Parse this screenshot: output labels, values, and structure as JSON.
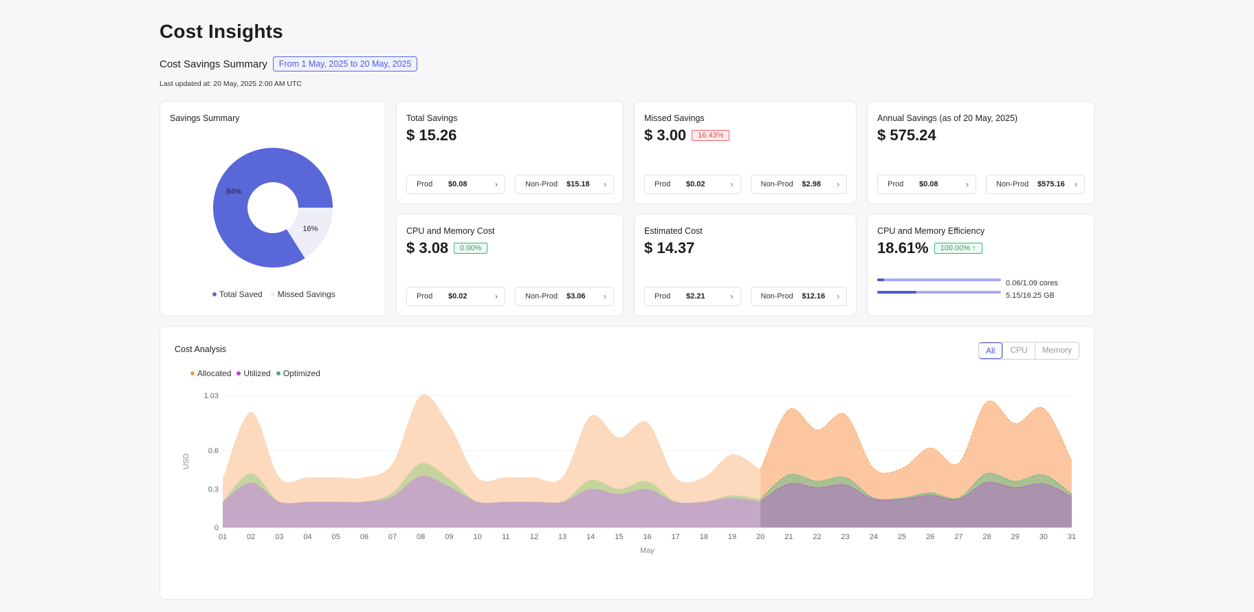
{
  "page": {
    "title": "Cost Insights",
    "summary_label": "Cost Savings Summary",
    "date_range": "From 1 May, 2025 to 20 May, 2025",
    "last_updated": "Last updated at: 20 May, 2025 2:00 AM UTC"
  },
  "savings_summary": {
    "title": "Savings Summary",
    "slices": [
      {
        "label": "Total Saved",
        "value": 84,
        "text": "84%",
        "color": "#5a67d8"
      },
      {
        "label": "Missed Savings",
        "value": 16,
        "text": "16%",
        "color": "#eeeef9"
      }
    ]
  },
  "cards": {
    "total_savings": {
      "title": "Total Savings",
      "value": "$ 15.26",
      "prod_label": "Prod",
      "prod_value": "$0.08",
      "nonprod_label": "Non-Prod",
      "nonprod_value": "$15.18"
    },
    "missed_savings": {
      "title": "Missed Savings",
      "value": "$ 3.00",
      "badge": "16.43%",
      "prod_label": "Prod",
      "prod_value": "$0.02",
      "nonprod_label": "Non-Prod",
      "nonprod_value": "$2.98"
    },
    "annual_savings": {
      "title": "Annual Savings (as of 20 May, 2025)",
      "value": "$ 575.24",
      "prod_label": "Prod",
      "prod_value": "$0.08",
      "nonprod_label": "Non-Prod",
      "nonprod_value": "$575.16"
    },
    "cpu_memory_cost": {
      "title": "CPU and Memory Cost",
      "value": "$ 3.08",
      "badge": "0.00%",
      "prod_label": "Prod",
      "prod_value": "$0.02",
      "nonprod_label": "Non-Prod",
      "nonprod_value": "$3.06"
    },
    "estimated_cost": {
      "title": "Estimated Cost",
      "value": "$ 14.37",
      "prod_label": "Prod",
      "prod_value": "$2.21",
      "nonprod_label": "Non-Prod",
      "nonprod_value": "$12.16"
    },
    "efficiency": {
      "title": "CPU and Memory Efficiency",
      "value": "18.61%",
      "badge": "100.00% ↑",
      "cpu_text": "0.06/1.09 cores",
      "cpu_ratio": 0.055,
      "mem_text": "5.15/16.25 GB",
      "mem_ratio": 0.317
    }
  },
  "cost_analysis": {
    "title": "Cost Analysis",
    "toggle": [
      "All",
      "CPU",
      "Memory"
    ],
    "active_toggle": "All"
  },
  "chart_data": {
    "type": "area",
    "xlabel": "May",
    "ylabel": "USD",
    "x": [
      "01",
      "02",
      "03",
      "04",
      "05",
      "06",
      "07",
      "08",
      "09",
      "10",
      "11",
      "12",
      "13",
      "14",
      "15",
      "16",
      "17",
      "18",
      "19",
      "20",
      "21",
      "22",
      "23",
      "24",
      "25",
      "26",
      "27",
      "28",
      "29",
      "30",
      "31"
    ],
    "yticks": [
      0,
      0.3,
      0.6,
      1.03
    ],
    "ylim": [
      0,
      1.03
    ],
    "forecast_from": "20",
    "series": [
      {
        "name": "Allocated",
        "color": "#f59a4a",
        "values": [
          0.38,
          0.9,
          0.39,
          0.39,
          0.39,
          0.39,
          0.5,
          1.03,
          0.8,
          0.39,
          0.39,
          0.39,
          0.39,
          0.87,
          0.7,
          0.82,
          0.39,
          0.39,
          0.57,
          0.45,
          0.92,
          0.76,
          0.88,
          0.46,
          0.46,
          0.62,
          0.5,
          0.98,
          0.81,
          0.93,
          0.52
        ]
      },
      {
        "name": "Optimized",
        "color": "#3fb27f",
        "values": [
          0.2,
          0.42,
          0.2,
          0.2,
          0.2,
          0.2,
          0.27,
          0.5,
          0.38,
          0.2,
          0.2,
          0.2,
          0.2,
          0.37,
          0.3,
          0.36,
          0.2,
          0.2,
          0.25,
          0.22,
          0.41,
          0.36,
          0.39,
          0.23,
          0.23,
          0.27,
          0.23,
          0.42,
          0.36,
          0.41,
          0.26
        ]
      },
      {
        "name": "Utilized",
        "color": "#c23bd6",
        "values": [
          0.2,
          0.35,
          0.2,
          0.2,
          0.2,
          0.2,
          0.24,
          0.4,
          0.32,
          0.2,
          0.2,
          0.2,
          0.2,
          0.3,
          0.26,
          0.3,
          0.2,
          0.2,
          0.23,
          0.2,
          0.34,
          0.31,
          0.33,
          0.22,
          0.22,
          0.25,
          0.22,
          0.35,
          0.31,
          0.34,
          0.24
        ]
      }
    ]
  }
}
